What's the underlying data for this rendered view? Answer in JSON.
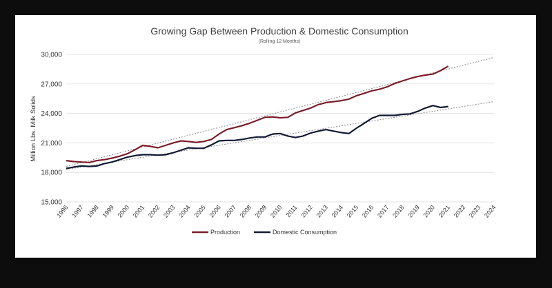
{
  "chart_data": {
    "type": "line",
    "title": "Growing Gap Between Production & Domestic Consumption",
    "subtitle": "(Rolling 12 Months)",
    "xlabel": "",
    "ylabel": "Million Lbs. Milk Solids",
    "ylim": [
      15000,
      30000
    ],
    "xlim": [
      1996,
      2024
    ],
    "yticks": [
      15000,
      18000,
      21000,
      24000,
      27000,
      30000
    ],
    "ytick_labels": [
      "15,000",
      "18,000",
      "21,000",
      "24,000",
      "27,000",
      "30,000"
    ],
    "xticks": [
      "1996",
      "1997",
      "1998",
      "1999",
      "2000",
      "2001",
      "2002",
      "2003",
      "2004",
      "2005",
      "2006",
      "2007",
      "2008",
      "2009",
      "2010",
      "2011",
      "2012",
      "2013",
      "2014",
      "2015",
      "2016",
      "2017",
      "2018",
      "2019",
      "2020",
      "2021",
      "2022",
      "2023",
      "2024"
    ],
    "grid": true,
    "legend": "bottom",
    "colors": {
      "production": "#7b1e2b",
      "consumption": "#0f1a33",
      "trend": "#8c8c8c"
    },
    "series": [
      {
        "name": "Production",
        "x": [
          1996.0,
          1996.5,
          1997.0,
          1997.5,
          1998.0,
          1998.5,
          1999.0,
          1999.5,
          2000.0,
          2000.5,
          2001.0,
          2001.5,
          2002.0,
          2002.5,
          2003.0,
          2003.5,
          2004.0,
          2004.5,
          2005.0,
          2005.5,
          2006.0,
          2006.5,
          2007.0,
          2007.5,
          2008.0,
          2008.5,
          2009.0,
          2009.5,
          2010.0,
          2010.5,
          2011.0,
          2011.5,
          2012.0,
          2012.5,
          2013.0,
          2013.5,
          2014.0,
          2014.5,
          2015.0,
          2015.5,
          2016.0,
          2016.5,
          2017.0,
          2017.5,
          2018.0,
          2018.5,
          2019.0,
          2019.5,
          2020.0,
          2020.5,
          2021.0
        ],
        "values": [
          19200,
          19100,
          19050,
          19000,
          19200,
          19300,
          19450,
          19650,
          19900,
          20300,
          20750,
          20650,
          20500,
          20750,
          21000,
          21200,
          21150,
          21050,
          21150,
          21350,
          21900,
          22350,
          22550,
          22750,
          23000,
          23300,
          23600,
          23650,
          23550,
          23600,
          24050,
          24300,
          24550,
          24900,
          25100,
          25200,
          25300,
          25450,
          25800,
          26050,
          26300,
          26450,
          26700,
          27050,
          27300,
          27550,
          27750,
          27900,
          28000,
          28350,
          28800
        ]
      },
      {
        "name": "Domestic Consumption",
        "x": [
          1996.0,
          1996.5,
          1997.0,
          1997.5,
          1998.0,
          1998.5,
          1999.0,
          1999.5,
          2000.0,
          2000.5,
          2001.0,
          2001.5,
          2002.0,
          2002.5,
          2003.0,
          2003.5,
          2004.0,
          2004.5,
          2005.0,
          2005.5,
          2006.0,
          2006.5,
          2007.0,
          2007.5,
          2008.0,
          2008.5,
          2009.0,
          2009.5,
          2010.0,
          2010.5,
          2011.0,
          2011.5,
          2012.0,
          2012.5,
          2013.0,
          2013.5,
          2014.0,
          2014.5,
          2015.0,
          2015.5,
          2016.0,
          2016.5,
          2017.0,
          2017.5,
          2018.0,
          2018.5,
          2019.0,
          2019.5,
          2020.0,
          2020.5,
          2021.0
        ],
        "values": [
          18400,
          18550,
          18650,
          18600,
          18650,
          18900,
          19050,
          19300,
          19550,
          19700,
          19800,
          19800,
          19750,
          19800,
          20000,
          20250,
          20500,
          20450,
          20450,
          20800,
          21200,
          21250,
          21250,
          21350,
          21500,
          21600,
          21600,
          21900,
          21950,
          21700,
          21550,
          21700,
          22000,
          22200,
          22350,
          22200,
          22050,
          21950,
          22500,
          23000,
          23500,
          23800,
          23800,
          23800,
          23900,
          23950,
          24200,
          24550,
          24800,
          24600,
          24700
        ]
      },
      {
        "name": "Production trend",
        "x": [
          1996,
          2024
        ],
        "values": [
          18600,
          29700
        ]
      },
      {
        "name": "Consumption trend",
        "x": [
          1996,
          2024
        ],
        "values": [
          18300,
          25200
        ]
      }
    ]
  }
}
